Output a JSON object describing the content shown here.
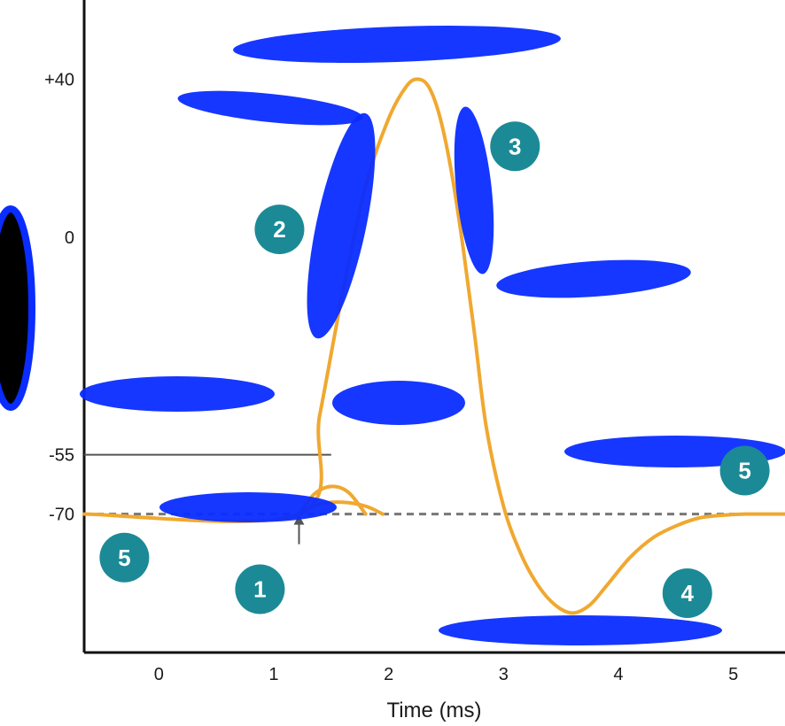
{
  "colors": {
    "curve": "#f0a830",
    "badge": "#1b8a96",
    "axis": "#111111",
    "threshold": "#555555",
    "resting": "#777777",
    "redaction": "#0a2cff"
  },
  "chart_data": {
    "type": "line",
    "xlabel": "Time (ms)",
    "ylabel": "",
    "xlim": [
      -0.65,
      5.45
    ],
    "ylim": [
      -105,
      60
    ],
    "x_ticks": [
      {
        "value": 0,
        "label": "0"
      },
      {
        "value": 1,
        "label": "1"
      },
      {
        "value": 2,
        "label": "2"
      },
      {
        "value": 3,
        "label": "3"
      },
      {
        "value": 4,
        "label": "4"
      },
      {
        "value": 5,
        "label": "5"
      }
    ],
    "y_ticks": [
      {
        "value": 40,
        "label": "+40"
      },
      {
        "value": 0,
        "label": "0"
      },
      {
        "value": -55,
        "label": "-55"
      },
      {
        "value": -70,
        "label": "-70"
      }
    ],
    "threshold_value": -55,
    "resting_value": -70,
    "stimulus_time": 1.22,
    "grid": false,
    "series": [
      {
        "values": [
          [
            -0.65,
            -70
          ],
          [
            1.22,
            -70
          ],
          [
            1.4,
            -45
          ],
          [
            1.6,
            -14
          ],
          [
            1.8,
            13
          ],
          [
            2.0,
            30
          ],
          [
            2.15,
            38
          ],
          [
            2.25,
            40
          ],
          [
            2.35,
            38
          ],
          [
            2.45,
            30
          ],
          [
            2.55,
            16
          ],
          [
            2.65,
            -3
          ],
          [
            2.75,
            -25
          ],
          [
            2.85,
            -48
          ],
          [
            3.0,
            -68
          ],
          [
            3.15,
            -80
          ],
          [
            3.3,
            -88
          ],
          [
            3.45,
            -93
          ],
          [
            3.6,
            -95
          ],
          [
            3.75,
            -93
          ],
          [
            3.9,
            -88
          ],
          [
            4.1,
            -81
          ],
          [
            4.3,
            -76
          ],
          [
            4.5,
            -73
          ],
          [
            4.7,
            -71
          ],
          [
            4.9,
            -70.3
          ],
          [
            5.1,
            -70
          ],
          [
            5.45,
            -70
          ]
        ]
      },
      {
        "values": [
          [
            1.22,
            -70
          ],
          [
            1.35,
            -65
          ],
          [
            1.5,
            -63
          ],
          [
            1.65,
            -64.5
          ],
          [
            1.8,
            -70
          ]
        ]
      },
      {
        "values": [
          [
            1.22,
            -70
          ],
          [
            1.4,
            -67.5
          ],
          [
            1.6,
            -67
          ],
          [
            1.8,
            -68
          ],
          [
            1.95,
            -70
          ]
        ]
      }
    ],
    "annotations": [
      {
        "label": "1",
        "x": 0.88,
        "y": -89
      },
      {
        "label": "2",
        "x": 1.05,
        "y": 2
      },
      {
        "label": "3",
        "x": 3.1,
        "y": 23
      },
      {
        "label": "4",
        "x": 4.6,
        "y": -90
      },
      {
        "label": "5",
        "x": -0.3,
        "y": -81
      },
      {
        "label": "5",
        "x": 5.1,
        "y": -59
      }
    ]
  }
}
